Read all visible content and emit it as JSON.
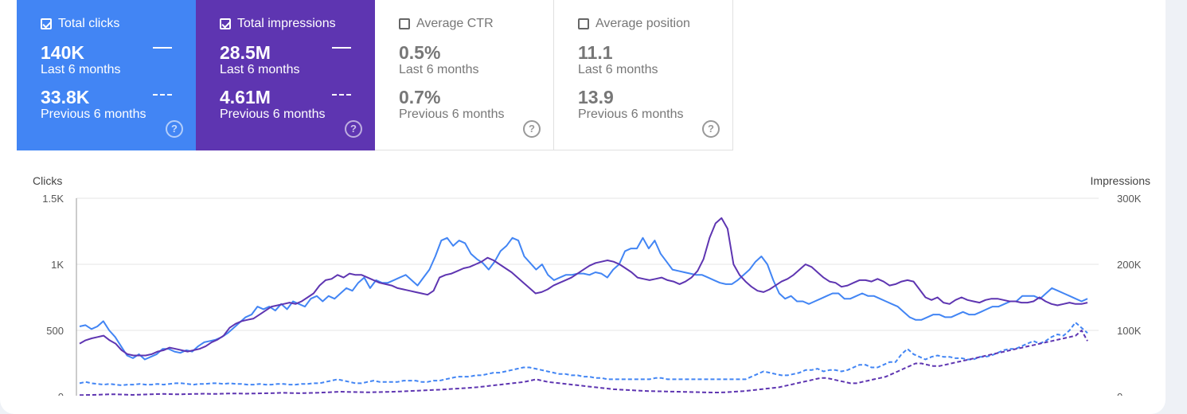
{
  "metrics": [
    {
      "label": "Total clicks",
      "checked": true,
      "current_value": "140K",
      "current_period": "Last 6 months",
      "previous_value": "33.8K",
      "previous_period": "Previous 6 months"
    },
    {
      "label": "Total impressions",
      "checked": true,
      "current_value": "28.5M",
      "current_period": "Last 6 months",
      "previous_value": "4.61M",
      "previous_period": "Previous 6 months"
    },
    {
      "label": "Average CTR",
      "checked": false,
      "current_value": "0.5%",
      "current_period": "Last 6 months",
      "previous_value": "0.7%",
      "previous_period": "Previous 6 months"
    },
    {
      "label": "Average position",
      "checked": false,
      "current_value": "11.1",
      "current_period": "Last 6 months",
      "previous_value": "13.9",
      "previous_period": "Previous 6 months"
    }
  ],
  "help_glyph": "?",
  "colors": {
    "clicks": "#4285f4",
    "impressions": "#5e35b1"
  },
  "chart_data": {
    "type": "line",
    "left_axis_label": "Clicks",
    "right_axis_label": "Impressions",
    "left_ticks": [
      "0",
      "500",
      "1K",
      "1.5K"
    ],
    "right_ticks": [
      "0",
      "100K",
      "200K",
      "300K"
    ],
    "ylim_left": [
      0,
      1500
    ],
    "ylim_right": [
      0,
      300000
    ],
    "series": [
      {
        "name": "Total clicks",
        "axis": "left",
        "dashed": false,
        "color": "#4285f4",
        "values": [
          530,
          540,
          510,
          530,
          570,
          500,
          450,
          380,
          310,
          290,
          320,
          280,
          300,
          320,
          360,
          360,
          340,
          330,
          350,
          340,
          380,
          410,
          420,
          430,
          450,
          480,
          520,
          560,
          600,
          620,
          680,
          660,
          680,
          650,
          700,
          660,
          720,
          700,
          680,
          740,
          760,
          720,
          760,
          740,
          780,
          820,
          800,
          860,
          900,
          820,
          880,
          860,
          860,
          880,
          900,
          920,
          880,
          840,
          900,
          960,
          1060,
          1180,
          1200,
          1140,
          1180,
          1160,
          1080,
          1040,
          1010,
          960,
          1020,
          1100,
          1140,
          1200,
          1180,
          1060,
          1010,
          960,
          1000,
          920,
          880,
          900,
          920,
          920,
          930,
          930,
          920,
          940,
          930,
          900,
          960,
          1000,
          1100,
          1120,
          1120,
          1200,
          1120,
          1180,
          1080,
          1020,
          960,
          950,
          940,
          930,
          920,
          920,
          900,
          880,
          860,
          850,
          850,
          880,
          920,
          960,
          1020,
          1060,
          1000,
          880,
          780,
          740,
          760,
          720,
          720,
          700,
          720,
          740,
          760,
          780,
          780,
          740,
          740,
          760,
          780,
          760,
          760,
          740,
          720,
          700,
          680,
          640,
          600,
          580,
          580,
          600,
          620,
          620,
          600,
          600,
          620,
          640,
          620,
          620,
          640,
          660,
          680,
          680,
          700,
          720,
          720,
          760,
          760,
          760,
          740,
          780,
          820,
          800,
          780,
          760,
          740,
          720,
          740
        ],
        "display_x": [
          0
        ]
      },
      {
        "name": "Total impressions",
        "axis": "right",
        "dashed": false,
        "color": "#5e35b1",
        "values": [
          80000,
          85000,
          88000,
          90000,
          92000,
          85000,
          80000,
          70000,
          64000,
          62000,
          62000,
          62000,
          64000,
          68000,
          70000,
          74000,
          72000,
          70000,
          68000,
          70000,
          72000,
          76000,
          82000,
          86000,
          92000,
          104000,
          110000,
          114000,
          116000,
          118000,
          124000,
          130000,
          136000,
          138000,
          140000,
          142000,
          140000,
          144000,
          150000,
          156000,
          168000,
          176000,
          178000,
          184000,
          180000,
          186000,
          184000,
          184000,
          180000,
          176000,
          172000,
          170000,
          168000,
          164000,
          162000,
          160000,
          158000,
          156000,
          154000,
          160000,
          180000,
          184000,
          186000,
          190000,
          194000,
          196000,
          200000,
          204000,
          210000,
          206000,
          200000,
          194000,
          188000,
          180000,
          172000,
          164000,
          156000,
          158000,
          162000,
          168000,
          172000,
          176000,
          180000,
          186000,
          192000,
          198000,
          202000,
          204000,
          206000,
          204000,
          200000,
          194000,
          188000,
          180000,
          178000,
          176000,
          178000,
          180000,
          176000,
          174000,
          170000,
          174000,
          180000,
          190000,
          208000,
          240000,
          262000,
          270000,
          254000,
          200000,
          184000,
          174000,
          166000,
          160000,
          158000,
          162000,
          168000,
          174000,
          178000,
          184000,
          192000,
          200000,
          196000,
          188000,
          180000,
          174000,
          172000,
          166000,
          168000,
          172000,
          176000,
          176000,
          174000,
          178000,
          174000,
          168000,
          170000,
          174000,
          176000,
          174000,
          162000,
          150000,
          146000,
          150000,
          142000,
          140000,
          146000,
          150000,
          146000,
          144000,
          142000,
          146000,
          148000,
          148000,
          146000,
          144000,
          144000,
          142000,
          142000,
          144000,
          150000,
          144000,
          140000,
          138000,
          140000,
          142000,
          140000,
          140000,
          142000
        ]
      },
      {
        "name": "Total clicks (previous)",
        "axis": "left",
        "dashed": true,
        "color": "#4285f4",
        "values": [
          100,
          110,
          100,
          95,
          90,
          95,
          90,
          85,
          90,
          90,
          95,
          90,
          90,
          95,
          90,
          95,
          100,
          100,
          95,
          90,
          95,
          95,
          100,
          100,
          95,
          100,
          95,
          95,
          90,
          90,
          95,
          90,
          90,
          95,
          95,
          90,
          90,
          95,
          95,
          100,
          100,
          110,
          120,
          130,
          120,
          110,
          100,
          100,
          110,
          120,
          110,
          110,
          110,
          110,
          120,
          120,
          120,
          110,
          110,
          120,
          120,
          130,
          140,
          150,
          150,
          150,
          160,
          160,
          170,
          180,
          180,
          190,
          200,
          210,
          220,
          220,
          210,
          200,
          190,
          180,
          170,
          170,
          160,
          160,
          150,
          150,
          140,
          140,
          130,
          130,
          130,
          130,
          130,
          130,
          130,
          130,
          140,
          140,
          130,
          130,
          130,
          130,
          130,
          130,
          130,
          130,
          130,
          130,
          130,
          130,
          130,
          130,
          150,
          170,
          190,
          180,
          170,
          160,
          160,
          170,
          180,
          200,
          200,
          210,
          190,
          200,
          200,
          190,
          200,
          220,
          240,
          240,
          220,
          220,
          240,
          260,
          260,
          320,
          360,
          320,
          300,
          280,
          300,
          310,
          300,
          300,
          290,
          290,
          280,
          280,
          300,
          300,
          310,
          330,
          350,
          360,
          360,
          380,
          400,
          420,
          400,
          420,
          450,
          470,
          460,
          500,
          560,
          520,
          480
        ]
      },
      {
        "name": "Total impressions (previous)",
        "axis": "right",
        "dashed": true,
        "color": "#5e35b1",
        "values": [
          2000,
          2200,
          2400,
          2600,
          3000,
          3200,
          3400,
          3000,
          2600,
          2400,
          2800,
          3000,
          3400,
          3600,
          3800,
          3600,
          3400,
          3200,
          3600,
          3800,
          4000,
          4200,
          4000,
          3800,
          4200,
          4400,
          4600,
          4400,
          4200,
          4400,
          4600,
          4800,
          5000,
          5200,
          5600,
          5400,
          5200,
          5000,
          5200,
          5400,
          5600,
          6000,
          6400,
          6800,
          7200,
          7000,
          6800,
          6600,
          6400,
          6400,
          6600,
          6800,
          7000,
          7200,
          7600,
          8000,
          8400,
          8800,
          9200,
          9600,
          10000,
          10400,
          11000,
          11600,
          12000,
          12600,
          13200,
          14000,
          15000,
          16000,
          17000,
          18000,
          19000,
          20000,
          21000,
          22000,
          24000,
          26000,
          24000,
          22000,
          21000,
          20000,
          19000,
          18000,
          17000,
          16000,
          15000,
          14000,
          13000,
          12000,
          11000,
          10500,
          10000,
          9500,
          9000,
          8600,
          8200,
          8000,
          7800,
          7600,
          7400,
          7200,
          7000,
          6800,
          6600,
          6400,
          6200,
          6000,
          6000,
          6400,
          7000,
          7600,
          8200,
          9000,
          10000,
          11000,
          12000,
          13000,
          14000,
          16000,
          18000,
          20000,
          22000,
          24000,
          26000,
          28000,
          28000,
          26000,
          24000,
          22000,
          20000,
          20000,
          22000,
          24000,
          26000,
          28000,
          30000,
          34000,
          38000,
          42000,
          46000,
          50000,
          50000,
          48000,
          46000,
          46000,
          48000,
          50000,
          52000,
          54000,
          56000,
          58000,
          60000,
          62000,
          64000,
          66000,
          68000,
          70000,
          72000,
          74000,
          76000,
          78000,
          80000,
          82000,
          84000,
          86000,
          88000,
          90000,
          92000,
          100000,
          84000
        ]
      }
    ]
  }
}
